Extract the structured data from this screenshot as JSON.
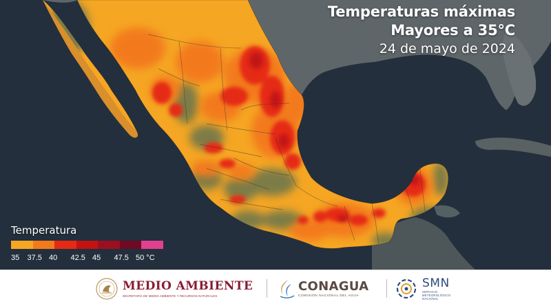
{
  "header": {
    "title_line1": "Temperaturas máximas",
    "title_line2": "Mayores a 35°C",
    "date": "24 de mayo de 2024"
  },
  "legend": {
    "title": "Temperatura",
    "colors": [
      "#f5a623",
      "#f37a1c",
      "#e52a14",
      "#c21213",
      "#9a1020",
      "#6e0a24",
      "#e0408f"
    ],
    "ticks": [
      "35",
      "37.5",
      "40",
      "42.5",
      "45",
      "47.5",
      "50 °C"
    ]
  },
  "colors": {
    "ocean": "#1f2a35",
    "land_outside": "#5f6669",
    "vegetation": "#7d7c46",
    "footer_bg": "#ffffff",
    "medio_ambiente": "#8a1c33",
    "conagua": "#5a4a44",
    "smn": "#2f4a7a"
  },
  "footer": {
    "medio_ambiente": "MEDIO AMBIENTE",
    "medio_ambiente_sub": "SECRETARÍA DE MEDIO AMBIENTE Y RECURSOS NATURALES",
    "conagua": "CONAGUA",
    "conagua_sub": "COMISIÓN NACIONAL DEL AGUA",
    "smn": "SMN",
    "smn_sub_1": "SERVICIO",
    "smn_sub_2": "METEOROLÓGICO",
    "smn_sub_3": "NACIONAL"
  },
  "icons": [
    "coat-of-arms-icon",
    "conagua-logo-icon",
    "smn-logo-icon"
  ]
}
